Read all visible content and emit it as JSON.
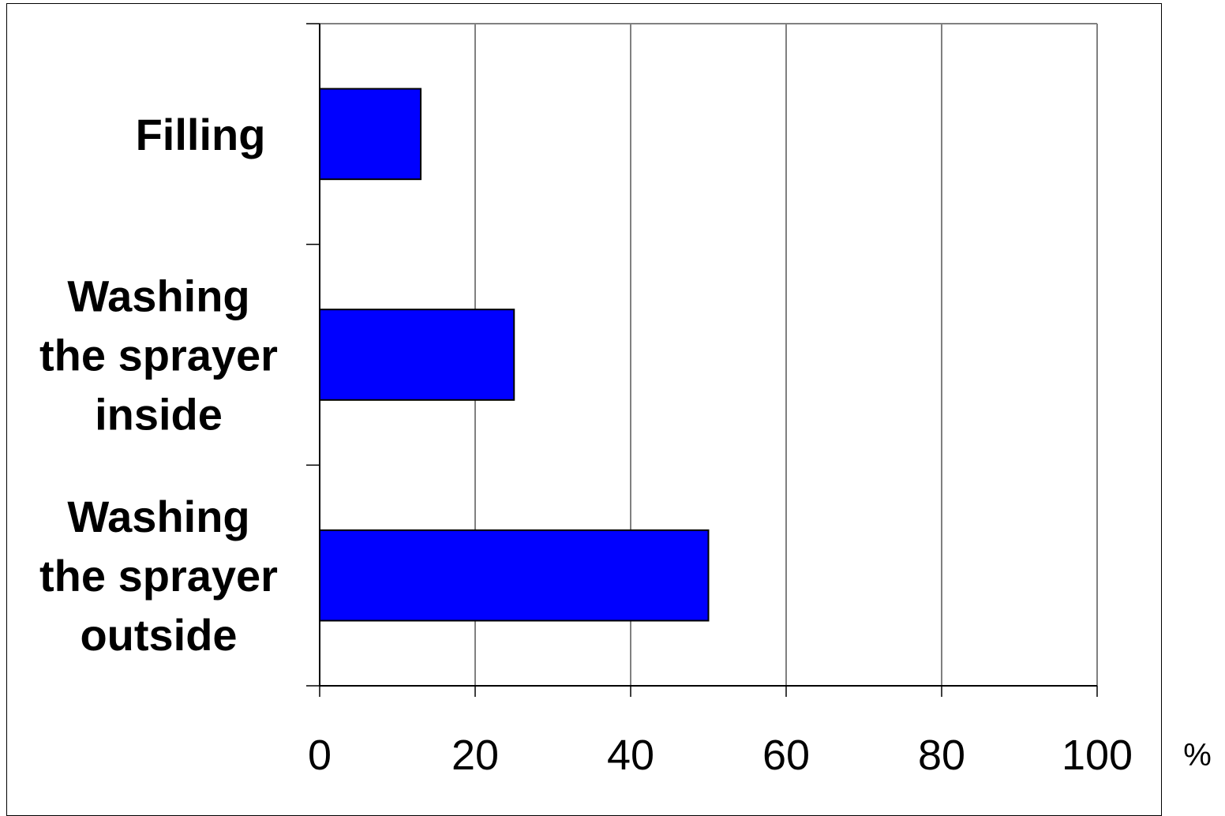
{
  "chart_data": {
    "type": "bar",
    "orientation": "horizontal",
    "categories": [
      [
        "Filling"
      ],
      [
        "Washing",
        "the sprayer",
        "inside"
      ],
      [
        "Washing",
        "the sprayer",
        "outside"
      ]
    ],
    "values": [
      13,
      25,
      50
    ],
    "xlim": [
      0,
      100
    ],
    "xticks": [
      "0",
      "20",
      "40",
      "60",
      "80",
      "100"
    ],
    "xunit": "%",
    "grid": true,
    "bar_color": "#0000ff",
    "bar_edge_color": "#000000",
    "legend": "none"
  }
}
